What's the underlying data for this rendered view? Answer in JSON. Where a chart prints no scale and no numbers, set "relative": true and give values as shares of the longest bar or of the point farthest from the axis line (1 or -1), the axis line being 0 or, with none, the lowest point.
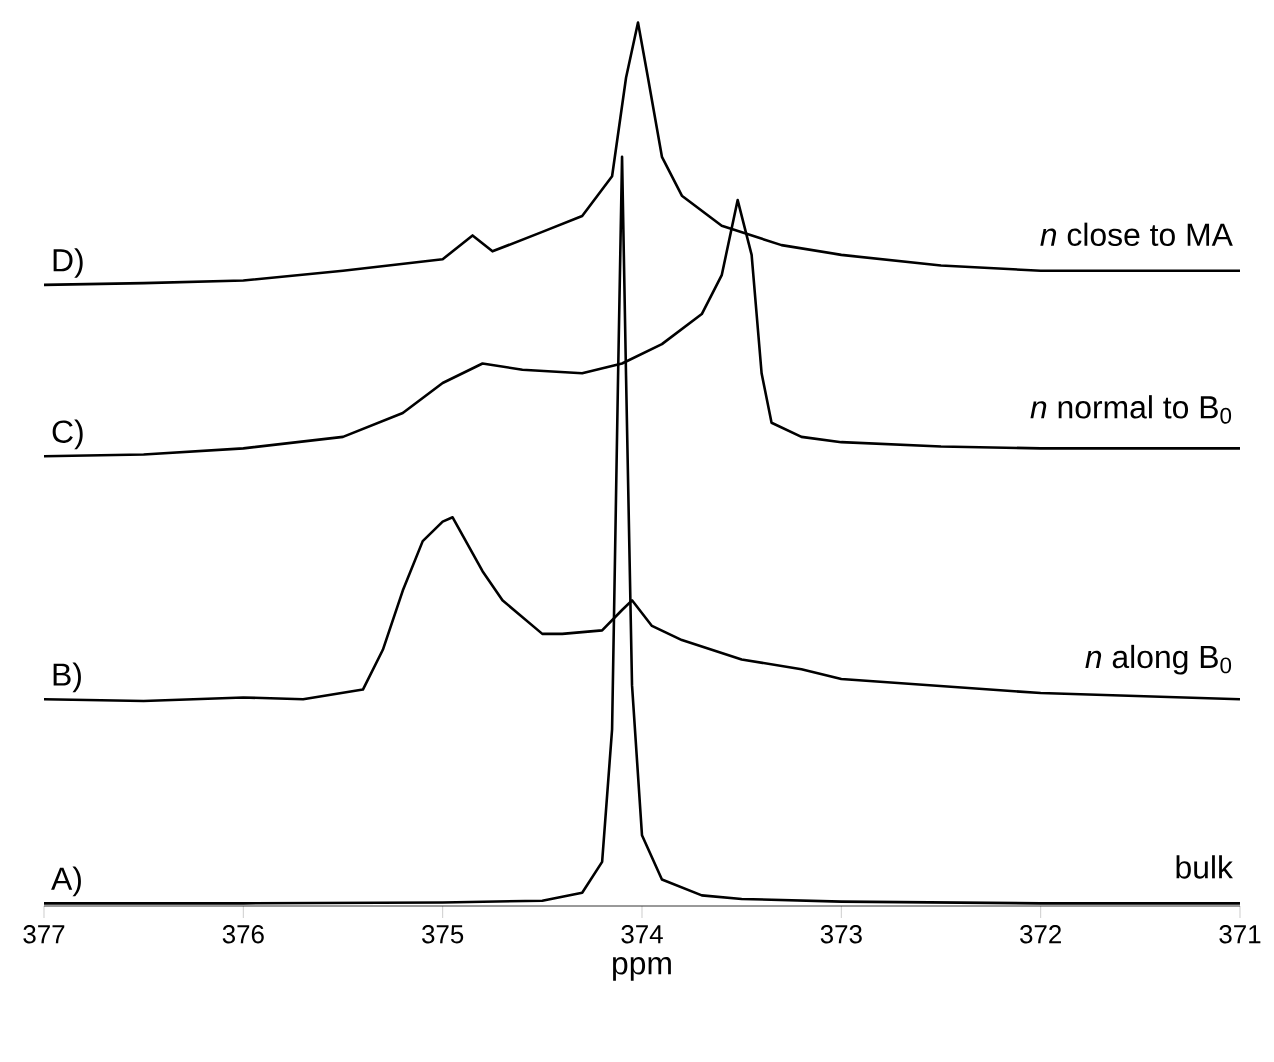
{
  "chart_data": {
    "type": "line",
    "xlabel": "ppm",
    "relative": true,
    "xlim": [
      377,
      371
    ],
    "xticks": [
      377,
      376,
      375,
      374,
      373,
      372,
      371
    ],
    "tick_labels": "x",
    "grid": false,
    "legend": false,
    "marker": "none",
    "line_style": "solid",
    "series": [
      {
        "name": "A)",
        "color": "#000000",
        "x": [
          377,
          376,
          375,
          374.5,
          374.3,
          374.2,
          374.15,
          374.12,
          374.1,
          374.08,
          374.05,
          374.0,
          373.9,
          373.7,
          373.5,
          373,
          372,
          371
        ],
        "values": [
          0.003,
          0.003,
          0.004,
          0.006,
          0.015,
          0.05,
          0.2,
          0.6,
          0.848,
          0.6,
          0.25,
          0.08,
          0.03,
          0.012,
          0.008,
          0.005,
          0.003,
          0.003
        ]
      },
      {
        "name": "B)",
        "color": "#000000",
        "x": [
          377,
          376.5,
          376,
          375.7,
          375.4,
          375.3,
          375.2,
          375.1,
          375.0,
          374.95,
          374.8,
          374.7,
          374.5,
          374.4,
          374.2,
          374.1,
          374.05,
          373.95,
          373.8,
          373.5,
          373.2,
          373,
          372,
          371
        ],
        "values": [
          0.234,
          0.232,
          0.236,
          0.234,
          0.245,
          0.29,
          0.357,
          0.413,
          0.435,
          0.44,
          0.379,
          0.346,
          0.308,
          0.308,
          0.312,
          0.335,
          0.346,
          0.317,
          0.301,
          0.279,
          0.268,
          0.257,
          0.241,
          0.234
        ]
      },
      {
        "name": "C)",
        "color": "#000000",
        "x": [
          377,
          376.5,
          376,
          375.5,
          375.2,
          375.0,
          374.8,
          374.6,
          374.3,
          374.1,
          373.9,
          373.7,
          373.6,
          373.52,
          373.45,
          373.4,
          373.35,
          373.2,
          373.0,
          372.5,
          372,
          371
        ],
        "values": [
          0.509,
          0.511,
          0.518,
          0.531,
          0.558,
          0.592,
          0.614,
          0.607,
          0.603,
          0.614,
          0.636,
          0.67,
          0.714,
          0.799,
          0.737,
          0.603,
          0.547,
          0.531,
          0.525,
          0.52,
          0.518,
          0.518
        ]
      },
      {
        "name": "D)",
        "color": "#000000",
        "x": [
          377,
          376.5,
          376,
          375.5,
          375,
          374.85,
          374.75,
          374.5,
          374.3,
          374.15,
          374.08,
          374.02,
          373.97,
          373.9,
          373.8,
          373.6,
          373.3,
          373,
          372.5,
          372,
          371
        ],
        "values": [
          0.703,
          0.705,
          0.708,
          0.719,
          0.732,
          0.759,
          0.741,
          0.763,
          0.781,
          0.826,
          0.9375,
          1.0,
          0.9375,
          0.848,
          0.804,
          0.77,
          0.748,
          0.737,
          0.725,
          0.719,
          0.719
        ]
      }
    ],
    "annotations": [
      "bulk",
      "*n* along B$_{0}$",
      "*n* normal to B$_{0}$",
      "*n* close to MA"
    ]
  }
}
